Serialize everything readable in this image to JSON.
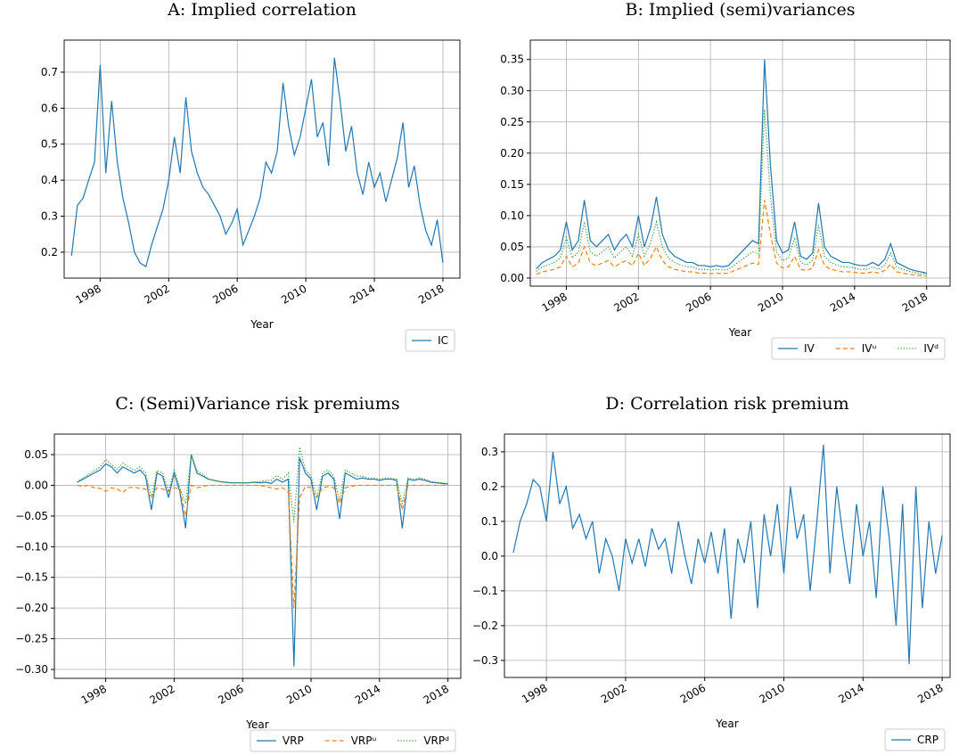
{
  "chart_data": [
    {
      "type": "line",
      "title": "A: Implied correlation",
      "xlabel": "Year",
      "grid": true,
      "legend": "lower right",
      "x": [
        1996.33,
        1996.67,
        1997,
        1997.33,
        1997.67,
        1998,
        1998.33,
        1998.67,
        1999,
        1999.33,
        1999.67,
        2000,
        2000.33,
        2000.67,
        2001,
        2001.33,
        2001.67,
        2002,
        2002.33,
        2002.67,
        2003,
        2003.33,
        2003.67,
        2004,
        2004.33,
        2004.67,
        2005,
        2005.33,
        2005.67,
        2006,
        2006.33,
        2006.67,
        2007,
        2007.33,
        2007.67,
        2008,
        2008.33,
        2008.67,
        2009,
        2009.33,
        2009.67,
        2010,
        2010.33,
        2010.67,
        2011,
        2011.33,
        2011.67,
        2012,
        2012.33,
        2012.67,
        2013,
        2013.33,
        2013.67,
        2014,
        2014.33,
        2014.67,
        2015,
        2015.33,
        2015.67,
        2016,
        2016.33,
        2016.67,
        2017,
        2017.33,
        2017.67,
        2018
      ],
      "xlim": [
        1995.9,
        2018.99
      ],
      "xticks": [
        1998,
        2002,
        2006,
        2010,
        2014,
        2018
      ],
      "ylim": [
        0.128,
        0.789
      ],
      "yticks": [
        0.2,
        0.3,
        0.4,
        0.5,
        0.6,
        0.7
      ],
      "series": [
        {
          "name": "IC",
          "color": "#1f77b4",
          "dash": "solid",
          "values": [
            0.19,
            0.33,
            0.35,
            0.4,
            0.45,
            0.72,
            0.42,
            0.62,
            0.45,
            0.35,
            0.28,
            0.2,
            0.17,
            0.16,
            0.22,
            0.27,
            0.32,
            0.4,
            0.52,
            0.42,
            0.63,
            0.48,
            0.42,
            0.38,
            0.36,
            0.33,
            0.3,
            0.25,
            0.28,
            0.32,
            0.22,
            0.26,
            0.3,
            0.35,
            0.45,
            0.42,
            0.48,
            0.67,
            0.55,
            0.47,
            0.52,
            0.6,
            0.68,
            0.52,
            0.56,
            0.44,
            0.74,
            0.62,
            0.48,
            0.55,
            0.42,
            0.36,
            0.45,
            0.38,
            0.42,
            0.34,
            0.4,
            0.46,
            0.56,
            0.38,
            0.44,
            0.33,
            0.26,
            0.22,
            0.29,
            0.17
          ]
        }
      ]
    },
    {
      "type": "line",
      "title": "B: Implied (semi)variances",
      "xlabel": "Year",
      "grid": true,
      "legend": "lower right",
      "x": [
        1996.33,
        1996.67,
        1997,
        1997.33,
        1997.67,
        1998,
        1998.33,
        1998.67,
        1999,
        1999.33,
        1999.67,
        2000,
        2000.33,
        2000.67,
        2001,
        2001.33,
        2001.67,
        2002,
        2002.33,
        2002.67,
        2003,
        2003.33,
        2003.67,
        2004,
        2004.33,
        2004.67,
        2005,
        2005.33,
        2005.67,
        2006,
        2006.33,
        2006.67,
        2007,
        2007.33,
        2007.67,
        2008,
        2008.33,
        2008.67,
        2009,
        2009.33,
        2009.67,
        2010,
        2010.33,
        2010.67,
        2011,
        2011.33,
        2011.67,
        2012,
        2012.33,
        2012.67,
        2013,
        2013.33,
        2013.67,
        2014,
        2014.33,
        2014.67,
        2015,
        2015.33,
        2015.67,
        2016,
        2016.33,
        2016.67,
        2017,
        2017.33,
        2017.67,
        2018
      ],
      "xlim": [
        1996.0,
        2019.3
      ],
      "xticks": [
        1998,
        2002,
        2006,
        2010,
        2014,
        2018
      ],
      "ylim": [
        -0.0129,
        0.381
      ],
      "yticks": [
        {
          "value": 0,
          "label": "0.00"
        },
        0.05,
        {
          "value": 0.1,
          "label": "0.10"
        },
        0.15,
        {
          "value": 0.2,
          "label": "0.20"
        },
        0.25,
        {
          "value": 0.3,
          "label": "0.30"
        },
        0.35
      ],
      "series": [
        {
          "name": "IV",
          "color": "#1f77b4",
          "dash": "solid",
          "values": [
            0.015,
            0.025,
            0.03,
            0.035,
            0.045,
            0.09,
            0.045,
            0.06,
            0.125,
            0.06,
            0.05,
            0.06,
            0.07,
            0.045,
            0.06,
            0.07,
            0.05,
            0.1,
            0.05,
            0.08,
            0.13,
            0.07,
            0.045,
            0.035,
            0.03,
            0.025,
            0.025,
            0.02,
            0.02,
            0.018,
            0.02,
            0.018,
            0.02,
            0.03,
            0.04,
            0.05,
            0.06,
            0.055,
            0.35,
            0.18,
            0.06,
            0.04,
            0.045,
            0.09,
            0.035,
            0.03,
            0.04,
            0.12,
            0.05,
            0.035,
            0.03,
            0.025,
            0.025,
            0.022,
            0.02,
            0.02,
            0.025,
            0.02,
            0.03,
            0.055,
            0.025,
            0.02,
            0.015,
            0.012,
            0.01,
            0.008
          ]
        },
        {
          "name": "IVᵘ",
          "color": "#ff7f0e",
          "dash": "dashed",
          "values": [
            0.006,
            0.01,
            0.012,
            0.014,
            0.018,
            0.035,
            0.018,
            0.024,
            0.05,
            0.024,
            0.02,
            0.024,
            0.028,
            0.018,
            0.024,
            0.028,
            0.02,
            0.04,
            0.02,
            0.032,
            0.05,
            0.028,
            0.018,
            0.014,
            0.012,
            0.01,
            0.01,
            0.008,
            0.008,
            0.007,
            0.008,
            0.007,
            0.008,
            0.012,
            0.016,
            0.02,
            0.024,
            0.022,
            0.125,
            0.07,
            0.024,
            0.016,
            0.018,
            0.035,
            0.014,
            0.012,
            0.016,
            0.045,
            0.02,
            0.014,
            0.012,
            0.01,
            0.01,
            0.009,
            0.008,
            0.008,
            0.01,
            0.008,
            0.012,
            0.022,
            0.01,
            0.008,
            0.006,
            0.005,
            0.004,
            0.003
          ]
        },
        {
          "name": "IVᵈ",
          "color": "#2ca02c",
          "dash": "dotted",
          "values": [
            0.011,
            0.018,
            0.021,
            0.025,
            0.032,
            0.065,
            0.032,
            0.042,
            0.09,
            0.042,
            0.035,
            0.042,
            0.05,
            0.032,
            0.042,
            0.05,
            0.035,
            0.07,
            0.035,
            0.056,
            0.09,
            0.05,
            0.032,
            0.025,
            0.021,
            0.018,
            0.018,
            0.014,
            0.014,
            0.013,
            0.014,
            0.013,
            0.014,
            0.021,
            0.028,
            0.035,
            0.042,
            0.039,
            0.27,
            0.13,
            0.042,
            0.028,
            0.032,
            0.065,
            0.025,
            0.021,
            0.028,
            0.085,
            0.035,
            0.025,
            0.021,
            0.018,
            0.018,
            0.016,
            0.014,
            0.014,
            0.018,
            0.014,
            0.021,
            0.04,
            0.018,
            0.014,
            0.011,
            0.009,
            0.007,
            0.006
          ]
        }
      ]
    },
    {
      "type": "line",
      "title": "C: (Semi)Variance risk premiums",
      "xlabel": "Year",
      "grid": true,
      "legend": "lower right",
      "x": [
        1996.33,
        1996.67,
        1997,
        1997.33,
        1997.67,
        1998,
        1998.33,
        1998.67,
        1999,
        1999.33,
        1999.67,
        2000,
        2000.33,
        2000.67,
        2001,
        2001.33,
        2001.67,
        2002,
        2002.33,
        2002.67,
        2003,
        2003.33,
        2003.67,
        2004,
        2004.33,
        2004.67,
        2005,
        2005.33,
        2005.67,
        2006,
        2006.33,
        2006.67,
        2007,
        2007.33,
        2007.67,
        2008,
        2008.33,
        2008.67,
        2009,
        2009.33,
        2009.67,
        2010,
        2010.33,
        2010.67,
        2011,
        2011.33,
        2011.67,
        2012,
        2012.33,
        2012.67,
        2013,
        2013.33,
        2013.67,
        2014,
        2014.33,
        2014.67,
        2015,
        2015.33,
        2015.67,
        2016,
        2016.33,
        2016.67,
        2017,
        2017.33,
        2017.67,
        2018
      ],
      "xlim": [
        1995.0,
        2018.75
      ],
      "xticks": [
        1998,
        2002,
        2006,
        2010,
        2014,
        2018
      ],
      "ylim": [
        -0.3145,
        0.0834
      ],
      "yticks": [
        0.05,
        {
          "value": 0,
          "label": "0.00"
        },
        {
          "value": -0.05,
          "label": "−0.05"
        },
        {
          "value": -0.1,
          "label": "−0.10"
        },
        {
          "value": -0.15,
          "label": "−0.15"
        },
        {
          "value": -0.2,
          "label": "−0.20"
        },
        {
          "value": -0.25,
          "label": "−0.25"
        },
        {
          "value": -0.3,
          "label": "−0.30"
        }
      ],
      "series": [
        {
          "name": "VRP",
          "color": "#1f77b4",
          "dash": "solid",
          "values": [
            0.005,
            0.01,
            0.015,
            0.02,
            0.025,
            0.035,
            0.03,
            0.02,
            0.03,
            0.025,
            0.02,
            0.025,
            0.015,
            -0.04,
            0.02,
            0.015,
            -0.02,
            0.02,
            -0.01,
            -0.07,
            0.05,
            0.02,
            0.015,
            0.01,
            0.008,
            0.006,
            0.005,
            0.004,
            0.004,
            0.004,
            0.004,
            0.005,
            0.004,
            0.005,
            0.003,
            0.01,
            0.005,
            0.01,
            -0.295,
            0.045,
            0.02,
            0.01,
            -0.04,
            0.015,
            0.02,
            0.01,
            -0.055,
            0.02,
            0.015,
            0.01,
            0.012,
            0.01,
            0.01,
            0.008,
            0.01,
            0.01,
            0.008,
            -0.07,
            0.01,
            0.008,
            0.01,
            0.008,
            0.005,
            0.004,
            0.003,
            0.002
          ]
        },
        {
          "name": "VRPᵘ",
          "color": "#ff7f0e",
          "dash": "dashed",
          "values": [
            0.0,
            -0.002,
            0.0,
            -0.004,
            -0.005,
            -0.01,
            -0.004,
            -0.006,
            -0.012,
            -0.004,
            -0.003,
            -0.005,
            -0.006,
            -0.02,
            -0.004,
            -0.006,
            -0.01,
            -0.004,
            -0.006,
            -0.05,
            0.0,
            -0.004,
            -0.002,
            0.0,
            0.0,
            0.0,
            0.0,
            0.0,
            0.0,
            0.0,
            0.0,
            0.0,
            0.0,
            -0.002,
            -0.004,
            -0.006,
            -0.004,
            -0.01,
            -0.2,
            -0.02,
            -0.002,
            -0.004,
            -0.02,
            -0.004,
            -0.002,
            -0.004,
            -0.03,
            -0.004,
            -0.002,
            0.0,
            0.0,
            0.0,
            0.0,
            0.0,
            0.0,
            0.0,
            0.0,
            -0.04,
            0.0,
            0.0,
            0.0,
            0.0,
            0.0,
            0.0,
            0.0,
            0.0
          ]
        },
        {
          "name": "VRPᵈ",
          "color": "#2ca02c",
          "dash": "dotted",
          "values": [
            0.005,
            0.012,
            0.018,
            0.024,
            0.03,
            0.042,
            0.034,
            0.026,
            0.036,
            0.03,
            0.024,
            0.03,
            0.02,
            -0.02,
            0.024,
            0.02,
            -0.01,
            0.024,
            -0.004,
            -0.03,
            0.05,
            0.024,
            0.018,
            0.01,
            0.008,
            0.006,
            0.005,
            0.004,
            0.004,
            0.004,
            0.004,
            0.005,
            0.006,
            0.008,
            0.008,
            0.016,
            0.01,
            0.02,
            -0.06,
            0.062,
            0.025,
            0.015,
            -0.02,
            0.02,
            0.025,
            0.015,
            -0.025,
            0.025,
            0.02,
            0.015,
            0.015,
            0.012,
            0.012,
            0.01,
            0.012,
            0.012,
            0.01,
            -0.03,
            0.012,
            0.01,
            0.012,
            0.01,
            0.006,
            0.005,
            0.004,
            0.003
          ]
        }
      ]
    },
    {
      "type": "line",
      "title": "D: Correlation risk premium",
      "xlabel": "Year",
      "grid": true,
      "legend": "lower right",
      "x": [
        1996.33,
        1996.67,
        1997,
        1997.33,
        1997.67,
        1998,
        1998.33,
        1998.67,
        1999,
        1999.33,
        1999.67,
        2000,
        2000.33,
        2000.67,
        2001,
        2001.33,
        2001.67,
        2002,
        2002.33,
        2002.67,
        2003,
        2003.33,
        2003.67,
        2004,
        2004.33,
        2004.67,
        2005,
        2005.33,
        2005.67,
        2006,
        2006.33,
        2006.67,
        2007,
        2007.33,
        2007.67,
        2008,
        2008.33,
        2008.67,
        2009,
        2009.33,
        2009.67,
        2010,
        2010.33,
        2010.67,
        2011,
        2011.33,
        2011.67,
        2012,
        2012.33,
        2012.67,
        2013,
        2013.33,
        2013.67,
        2014,
        2014.33,
        2014.67,
        2015,
        2015.33,
        2015.67,
        2016,
        2016.33,
        2016.67,
        2017,
        2017.33,
        2017.67,
        2018
      ],
      "xlim": [
        1995.88,
        2018.4
      ],
      "xticks": [
        1998,
        2002,
        2006,
        2010,
        2014,
        2018
      ],
      "ylim": [
        -0.349,
        0.351
      ],
      "yticks": [
        0.3,
        0.2,
        0.1,
        {
          "value": 0,
          "label": "0.0"
        },
        {
          "value": -0.1,
          "label": "−0.1"
        },
        {
          "value": -0.2,
          "label": "−0.2"
        },
        {
          "value": -0.3,
          "label": "−0.3"
        }
      ],
      "series": [
        {
          "name": "CRP",
          "color": "#1f77b4",
          "dash": "solid",
          "values": [
            0.01,
            0.1,
            0.15,
            0.22,
            0.2,
            0.1,
            0.3,
            0.15,
            0.2,
            0.08,
            0.12,
            0.05,
            0.1,
            -0.05,
            0.05,
            0.0,
            -0.1,
            0.05,
            -0.02,
            0.05,
            -0.03,
            0.08,
            0.02,
            0.05,
            -0.05,
            0.1,
            0.0,
            -0.08,
            0.05,
            -0.02,
            0.07,
            -0.05,
            0.08,
            -0.18,
            0.05,
            -0.02,
            0.1,
            -0.15,
            0.12,
            0.0,
            0.15,
            -0.05,
            0.2,
            0.05,
            0.12,
            -0.1,
            0.1,
            0.32,
            -0.05,
            0.2,
            0.05,
            -0.08,
            0.15,
            0.0,
            0.1,
            -0.12,
            0.2,
            0.05,
            -0.2,
            0.15,
            -0.31,
            0.2,
            -0.15,
            0.1,
            -0.05,
            0.06
          ]
        }
      ]
    }
  ]
}
